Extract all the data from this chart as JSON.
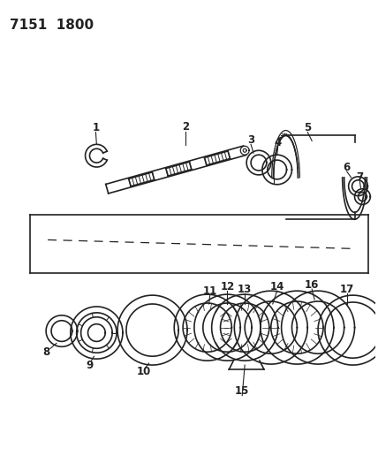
{
  "title": "7151  1800",
  "background_color": "#ffffff",
  "fig_width": 4.28,
  "fig_height": 5.33,
  "dpi": 100,
  "line_color": "#222222"
}
